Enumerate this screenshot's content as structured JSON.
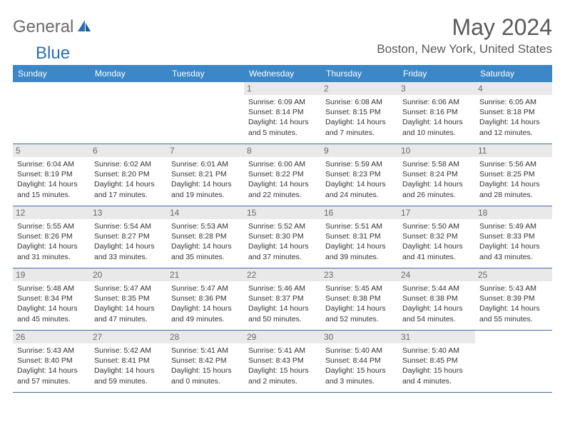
{
  "logo": {
    "general": "General",
    "blue": "Blue"
  },
  "title": "May 2024",
  "location": "Boston, New York, United States",
  "colors": {
    "header_bg": "#3b87c8",
    "header_text": "#ffffff",
    "daynum_bg": "#e9e9e9",
    "daynum_text": "#6a6a6a",
    "rule": "#3b6fa0",
    "logo_gray": "#6b6b6b",
    "logo_blue": "#2a6fb5",
    "title_color": "#5a5a5a"
  },
  "day_labels": [
    "Sunday",
    "Monday",
    "Tuesday",
    "Wednesday",
    "Thursday",
    "Friday",
    "Saturday"
  ],
  "weeks": [
    [
      null,
      null,
      null,
      {
        "n": "1",
        "sr": "Sunrise: 6:09 AM",
        "ss": "Sunset: 8:14 PM",
        "dl": "Daylight: 14 hours and 5 minutes."
      },
      {
        "n": "2",
        "sr": "Sunrise: 6:08 AM",
        "ss": "Sunset: 8:15 PM",
        "dl": "Daylight: 14 hours and 7 minutes."
      },
      {
        "n": "3",
        "sr": "Sunrise: 6:06 AM",
        "ss": "Sunset: 8:16 PM",
        "dl": "Daylight: 14 hours and 10 minutes."
      },
      {
        "n": "4",
        "sr": "Sunrise: 6:05 AM",
        "ss": "Sunset: 8:18 PM",
        "dl": "Daylight: 14 hours and 12 minutes."
      }
    ],
    [
      {
        "n": "5",
        "sr": "Sunrise: 6:04 AM",
        "ss": "Sunset: 8:19 PM",
        "dl": "Daylight: 14 hours and 15 minutes."
      },
      {
        "n": "6",
        "sr": "Sunrise: 6:02 AM",
        "ss": "Sunset: 8:20 PM",
        "dl": "Daylight: 14 hours and 17 minutes."
      },
      {
        "n": "7",
        "sr": "Sunrise: 6:01 AM",
        "ss": "Sunset: 8:21 PM",
        "dl": "Daylight: 14 hours and 19 minutes."
      },
      {
        "n": "8",
        "sr": "Sunrise: 6:00 AM",
        "ss": "Sunset: 8:22 PM",
        "dl": "Daylight: 14 hours and 22 minutes."
      },
      {
        "n": "9",
        "sr": "Sunrise: 5:59 AM",
        "ss": "Sunset: 8:23 PM",
        "dl": "Daylight: 14 hours and 24 minutes."
      },
      {
        "n": "10",
        "sr": "Sunrise: 5:58 AM",
        "ss": "Sunset: 8:24 PM",
        "dl": "Daylight: 14 hours and 26 minutes."
      },
      {
        "n": "11",
        "sr": "Sunrise: 5:56 AM",
        "ss": "Sunset: 8:25 PM",
        "dl": "Daylight: 14 hours and 28 minutes."
      }
    ],
    [
      {
        "n": "12",
        "sr": "Sunrise: 5:55 AM",
        "ss": "Sunset: 8:26 PM",
        "dl": "Daylight: 14 hours and 31 minutes."
      },
      {
        "n": "13",
        "sr": "Sunrise: 5:54 AM",
        "ss": "Sunset: 8:27 PM",
        "dl": "Daylight: 14 hours and 33 minutes."
      },
      {
        "n": "14",
        "sr": "Sunrise: 5:53 AM",
        "ss": "Sunset: 8:28 PM",
        "dl": "Daylight: 14 hours and 35 minutes."
      },
      {
        "n": "15",
        "sr": "Sunrise: 5:52 AM",
        "ss": "Sunset: 8:30 PM",
        "dl": "Daylight: 14 hours and 37 minutes."
      },
      {
        "n": "16",
        "sr": "Sunrise: 5:51 AM",
        "ss": "Sunset: 8:31 PM",
        "dl": "Daylight: 14 hours and 39 minutes."
      },
      {
        "n": "17",
        "sr": "Sunrise: 5:50 AM",
        "ss": "Sunset: 8:32 PM",
        "dl": "Daylight: 14 hours and 41 minutes."
      },
      {
        "n": "18",
        "sr": "Sunrise: 5:49 AM",
        "ss": "Sunset: 8:33 PM",
        "dl": "Daylight: 14 hours and 43 minutes."
      }
    ],
    [
      {
        "n": "19",
        "sr": "Sunrise: 5:48 AM",
        "ss": "Sunset: 8:34 PM",
        "dl": "Daylight: 14 hours and 45 minutes."
      },
      {
        "n": "20",
        "sr": "Sunrise: 5:47 AM",
        "ss": "Sunset: 8:35 PM",
        "dl": "Daylight: 14 hours and 47 minutes."
      },
      {
        "n": "21",
        "sr": "Sunrise: 5:47 AM",
        "ss": "Sunset: 8:36 PM",
        "dl": "Daylight: 14 hours and 49 minutes."
      },
      {
        "n": "22",
        "sr": "Sunrise: 5:46 AM",
        "ss": "Sunset: 8:37 PM",
        "dl": "Daylight: 14 hours and 50 minutes."
      },
      {
        "n": "23",
        "sr": "Sunrise: 5:45 AM",
        "ss": "Sunset: 8:38 PM",
        "dl": "Daylight: 14 hours and 52 minutes."
      },
      {
        "n": "24",
        "sr": "Sunrise: 5:44 AM",
        "ss": "Sunset: 8:38 PM",
        "dl": "Daylight: 14 hours and 54 minutes."
      },
      {
        "n": "25",
        "sr": "Sunrise: 5:43 AM",
        "ss": "Sunset: 8:39 PM",
        "dl": "Daylight: 14 hours and 55 minutes."
      }
    ],
    [
      {
        "n": "26",
        "sr": "Sunrise: 5:43 AM",
        "ss": "Sunset: 8:40 PM",
        "dl": "Daylight: 14 hours and 57 minutes."
      },
      {
        "n": "27",
        "sr": "Sunrise: 5:42 AM",
        "ss": "Sunset: 8:41 PM",
        "dl": "Daylight: 14 hours and 59 minutes."
      },
      {
        "n": "28",
        "sr": "Sunrise: 5:41 AM",
        "ss": "Sunset: 8:42 PM",
        "dl": "Daylight: 15 hours and 0 minutes."
      },
      {
        "n": "29",
        "sr": "Sunrise: 5:41 AM",
        "ss": "Sunset: 8:43 PM",
        "dl": "Daylight: 15 hours and 2 minutes."
      },
      {
        "n": "30",
        "sr": "Sunrise: 5:40 AM",
        "ss": "Sunset: 8:44 PM",
        "dl": "Daylight: 15 hours and 3 minutes."
      },
      {
        "n": "31",
        "sr": "Sunrise: 5:40 AM",
        "ss": "Sunset: 8:45 PM",
        "dl": "Daylight: 15 hours and 4 minutes."
      },
      null
    ]
  ]
}
